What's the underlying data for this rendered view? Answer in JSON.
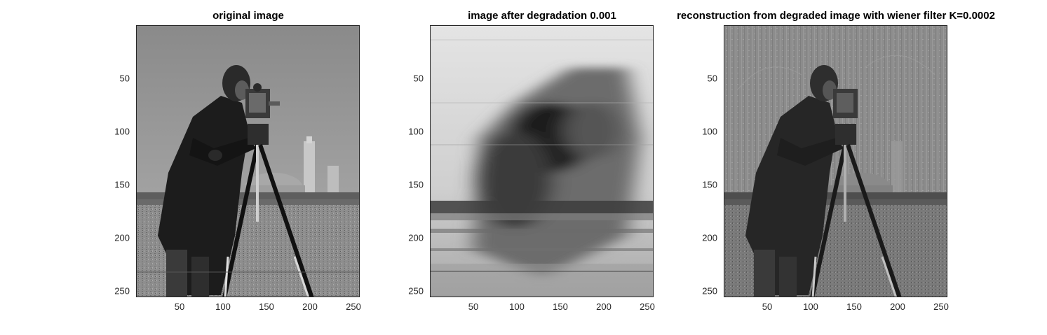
{
  "panels": [
    {
      "title": "original image",
      "variant": "original",
      "yticks": [
        "50",
        "100",
        "150",
        "200",
        "250"
      ],
      "xticks": [
        "50",
        "100",
        "150",
        "200",
        "250"
      ]
    },
    {
      "title": "image after degradation 0.001",
      "variant": "degraded",
      "yticks": [
        "50",
        "100",
        "150",
        "200",
        "250"
      ],
      "xticks": [
        "50",
        "100",
        "150",
        "200",
        "250"
      ]
    },
    {
      "title": "reconstruction from degraded image with wiener filter K=0.0002",
      "variant": "reconstructed",
      "yticks": [
        "50",
        "100",
        "150",
        "200",
        "250"
      ],
      "xticks": [
        "50",
        "100",
        "150",
        "200",
        "250"
      ]
    }
  ],
  "axis_range": {
    "x": [
      0.5,
      256.5
    ],
    "y": [
      0.5,
      256.5
    ]
  }
}
